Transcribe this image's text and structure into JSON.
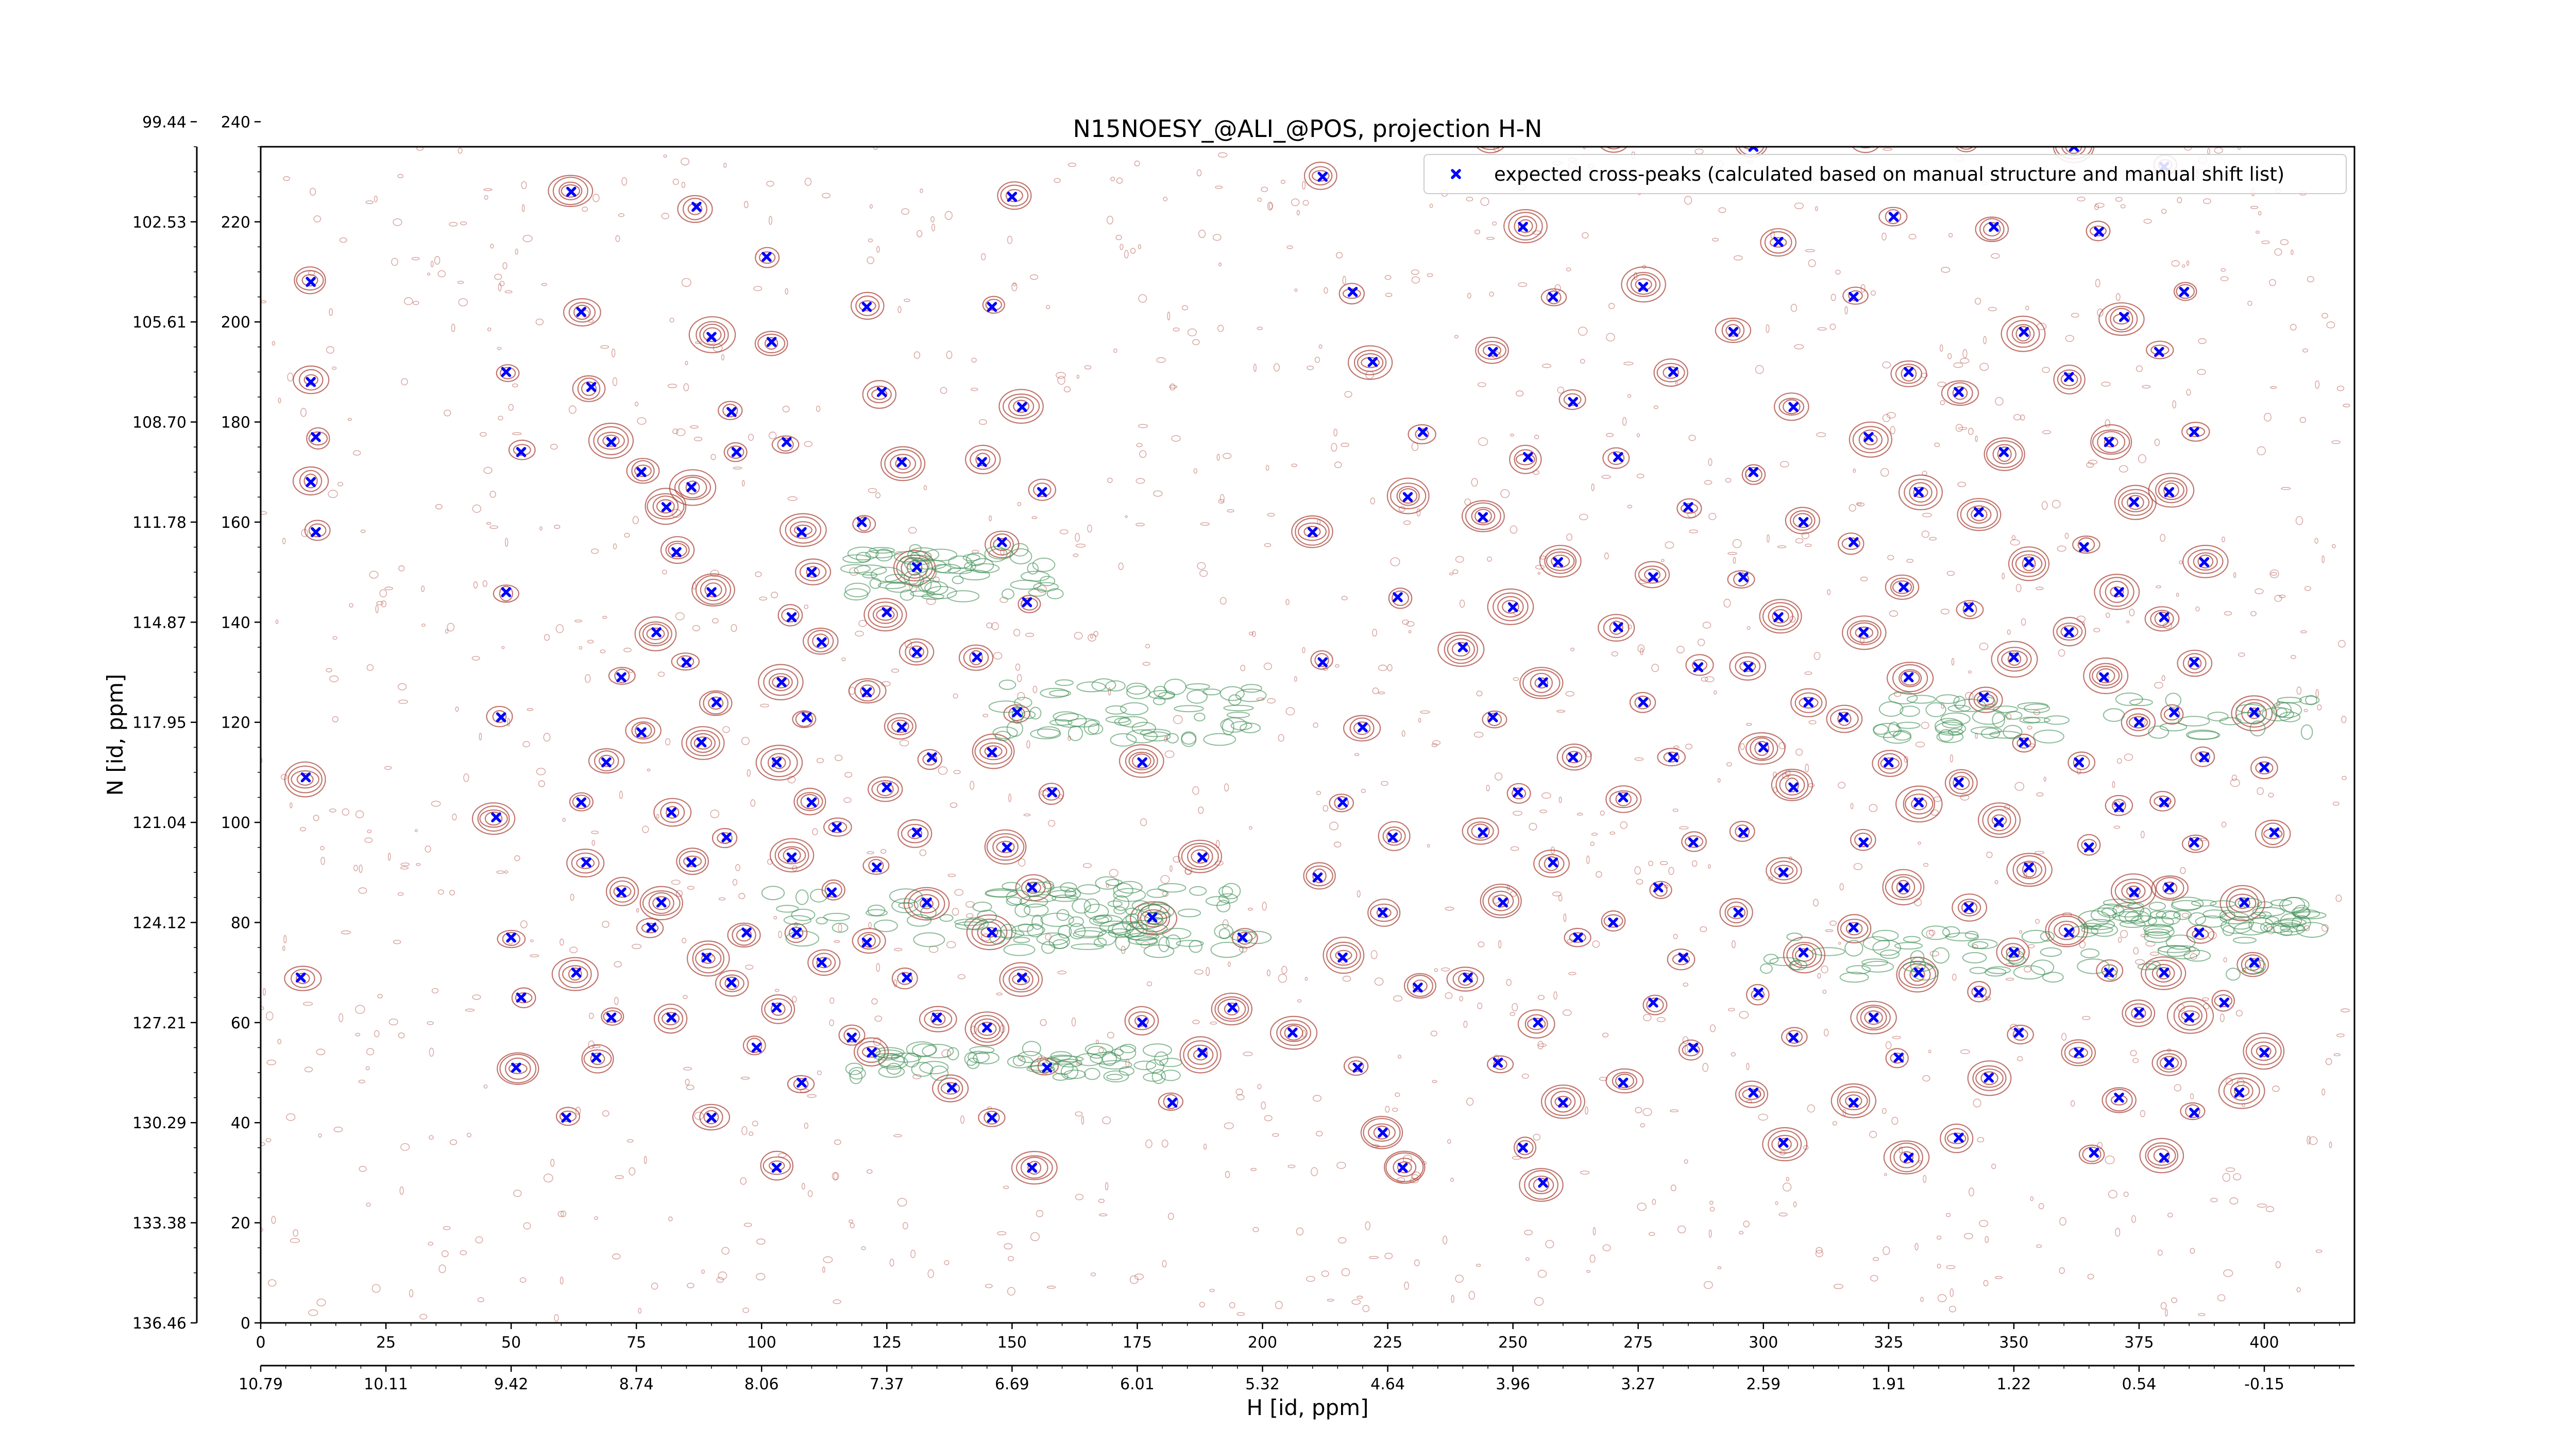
{
  "chart_data": {
    "type": "scatter",
    "title": "N15NOESY_@ALI_@POS, projection H-N",
    "xlabel": "H [id, ppm]",
    "ylabel": "N [id, ppm]",
    "xlim": [
      0,
      418
    ],
    "ylim": [
      0,
      235
    ],
    "x_ticks": [
      0,
      25,
      50,
      75,
      100,
      125,
      150,
      175,
      200,
      225,
      250,
      275,
      300,
      325,
      350,
      375,
      400
    ],
    "y_ticks": [
      0,
      20,
      40,
      60,
      80,
      100,
      120,
      140,
      160,
      180,
      200,
      220,
      240
    ],
    "secondary_x_ticks": [
      {
        "value": 0,
        "label": "10.79"
      },
      {
        "value": 25,
        "label": "10.11"
      },
      {
        "value": 50,
        "label": "9.42"
      },
      {
        "value": 75,
        "label": "8.74"
      },
      {
        "value": 100,
        "label": "8.06"
      },
      {
        "value": 125,
        "label": "7.37"
      },
      {
        "value": 150,
        "label": "6.69"
      },
      {
        "value": 175,
        "label": "6.01"
      },
      {
        "value": 200,
        "label": "5.32"
      },
      {
        "value": 225,
        "label": "4.64"
      },
      {
        "value": 250,
        "label": "3.96"
      },
      {
        "value": 275,
        "label": "3.27"
      },
      {
        "value": 300,
        "label": "2.59"
      },
      {
        "value": 325,
        "label": "1.91"
      },
      {
        "value": 350,
        "label": "1.22"
      },
      {
        "value": 375,
        "label": "0.54"
      },
      {
        "value": 400,
        "label": "-0.15"
      }
    ],
    "secondary_y_ticks": [
      {
        "value": 0,
        "label": "136.46"
      },
      {
        "value": 20,
        "label": "133.38"
      },
      {
        "value": 40,
        "label": "130.29"
      },
      {
        "value": 60,
        "label": "127.21"
      },
      {
        "value": 80,
        "label": "124.12"
      },
      {
        "value": 100,
        "label": "121.04"
      },
      {
        "value": 120,
        "label": "117.95"
      },
      {
        "value": 140,
        "label": "114.87"
      },
      {
        "value": 160,
        "label": "111.78"
      },
      {
        "value": 180,
        "label": "108.70"
      },
      {
        "value": 200,
        "label": "105.61"
      },
      {
        "value": 220,
        "label": "102.53"
      },
      {
        "value": 240,
        "label": "99.44"
      }
    ],
    "legend_position": "top-right",
    "grid": false,
    "series": [
      {
        "name": "expected cross-peaks (calculated based on manual structure and manual shift list)",
        "color": "#0000ff",
        "marker": "x",
        "points": [
          [
            10,
            208
          ],
          [
            10,
            188
          ],
          [
            11,
            177
          ],
          [
            10,
            168
          ],
          [
            11,
            158
          ],
          [
            9,
            109
          ],
          [
            8,
            69
          ],
          [
            49,
            190
          ],
          [
            52,
            174
          ],
          [
            49,
            146
          ],
          [
            48,
            121
          ],
          [
            47,
            101
          ],
          [
            50,
            77
          ],
          [
            52,
            65
          ],
          [
            51,
            51
          ],
          [
            62,
            226
          ],
          [
            64,
            202
          ],
          [
            66,
            187
          ],
          [
            70,
            176
          ],
          [
            76,
            170
          ],
          [
            81,
            163
          ],
          [
            83,
            154
          ],
          [
            79,
            138
          ],
          [
            72,
            129
          ],
          [
            76,
            118
          ],
          [
            69,
            112
          ],
          [
            64,
            104
          ],
          [
            65,
            92
          ],
          [
            72,
            86
          ],
          [
            78,
            79
          ],
          [
            63,
            70
          ],
          [
            70,
            61
          ],
          [
            67,
            53
          ],
          [
            61,
            41
          ],
          [
            87,
            223
          ],
          [
            90,
            197
          ],
          [
            94,
            182
          ],
          [
            95,
            174
          ],
          [
            86,
            167
          ],
          [
            90,
            146
          ],
          [
            85,
            132
          ],
          [
            91,
            124
          ],
          [
            88,
            116
          ],
          [
            82,
            102
          ],
          [
            93,
            97
          ],
          [
            86,
            92
          ],
          [
            80,
            84
          ],
          [
            97,
            78
          ],
          [
            89,
            73
          ],
          [
            94,
            68
          ],
          [
            82,
            61
          ],
          [
            99,
            55
          ],
          [
            90,
            41
          ],
          [
            101,
            213
          ],
          [
            102,
            196
          ],
          [
            105,
            176
          ],
          [
            108,
            158
          ],
          [
            110,
            150
          ],
          [
            106,
            141
          ],
          [
            112,
            136
          ],
          [
            104,
            128
          ],
          [
            109,
            121
          ],
          [
            103,
            112
          ],
          [
            110,
            104
          ],
          [
            115,
            99
          ],
          [
            106,
            93
          ],
          [
            114,
            86
          ],
          [
            107,
            78
          ],
          [
            112,
            72
          ],
          [
            103,
            63
          ],
          [
            118,
            57
          ],
          [
            108,
            48
          ],
          [
            103,
            31
          ],
          [
            121,
            203
          ],
          [
            124,
            186
          ],
          [
            128,
            172
          ],
          [
            120,
            160
          ],
          [
            131,
            151
          ],
          [
            125,
            142
          ],
          [
            131,
            134
          ],
          [
            121,
            126
          ],
          [
            128,
            119
          ],
          [
            134,
            113
          ],
          [
            125,
            107
          ],
          [
            131,
            98
          ],
          [
            123,
            91
          ],
          [
            133,
            84
          ],
          [
            121,
            76
          ],
          [
            129,
            69
          ],
          [
            135,
            61
          ],
          [
            122,
            54
          ],
          [
            138,
            47
          ],
          [
            150,
            225
          ],
          [
            146,
            203
          ],
          [
            152,
            183
          ],
          [
            144,
            172
          ],
          [
            156,
            166
          ],
          [
            148,
            156
          ],
          [
            153,
            144
          ],
          [
            143,
            133
          ],
          [
            151,
            122
          ],
          [
            146,
            114
          ],
          [
            158,
            106
          ],
          [
            149,
            95
          ],
          [
            154,
            87
          ],
          [
            146,
            78
          ],
          [
            152,
            69
          ],
          [
            145,
            59
          ],
          [
            157,
            51
          ],
          [
            146,
            41
          ],
          [
            154,
            31
          ],
          [
            176,
            112
          ],
          [
            178,
            81
          ],
          [
            176,
            60
          ],
          [
            182,
            44
          ],
          [
            188,
            93
          ],
          [
            196,
            77
          ],
          [
            194,
            63
          ],
          [
            188,
            54
          ],
          [
            212,
            229
          ],
          [
            218,
            206
          ],
          [
            222,
            192
          ],
          [
            232,
            178
          ],
          [
            229,
            165
          ],
          [
            210,
            158
          ],
          [
            227,
            145
          ],
          [
            212,
            132
          ],
          [
            220,
            119
          ],
          [
            216,
            104
          ],
          [
            226,
            97
          ],
          [
            211,
            89
          ],
          [
            224,
            82
          ],
          [
            216,
            73
          ],
          [
            231,
            67
          ],
          [
            206,
            58
          ],
          [
            219,
            51
          ],
          [
            224,
            38
          ],
          [
            228,
            31
          ],
          [
            245,
            236
          ],
          [
            252,
            219
          ],
          [
            258,
            205
          ],
          [
            246,
            194
          ],
          [
            262,
            184
          ],
          [
            253,
            173
          ],
          [
            244,
            161
          ],
          [
            259,
            152
          ],
          [
            250,
            143
          ],
          [
            240,
            135
          ],
          [
            256,
            128
          ],
          [
            246,
            121
          ],
          [
            262,
            113
          ],
          [
            251,
            106
          ],
          [
            244,
            98
          ],
          [
            258,
            92
          ],
          [
            248,
            84
          ],
          [
            263,
            77
          ],
          [
            241,
            69
          ],
          [
            255,
            60
          ],
          [
            247,
            52
          ],
          [
            260,
            44
          ],
          [
            252,
            35
          ],
          [
            256,
            28
          ],
          [
            270,
            236
          ],
          [
            276,
            207
          ],
          [
            282,
            190
          ],
          [
            271,
            173
          ],
          [
            285,
            163
          ],
          [
            278,
            149
          ],
          [
            271,
            139
          ],
          [
            287,
            131
          ],
          [
            276,
            124
          ],
          [
            282,
            113
          ],
          [
            272,
            105
          ],
          [
            286,
            96
          ],
          [
            279,
            87
          ],
          [
            270,
            80
          ],
          [
            284,
            73
          ],
          [
            278,
            64
          ],
          [
            286,
            55
          ],
          [
            272,
            48
          ],
          [
            298,
            235
          ],
          [
            303,
            216
          ],
          [
            294,
            198
          ],
          [
            306,
            183
          ],
          [
            298,
            170
          ],
          [
            308,
            160
          ],
          [
            296,
            149
          ],
          [
            303,
            141
          ],
          [
            297,
            131
          ],
          [
            309,
            124
          ],
          [
            300,
            115
          ],
          [
            306,
            107
          ],
          [
            296,
            98
          ],
          [
            304,
            90
          ],
          [
            295,
            82
          ],
          [
            308,
            74
          ],
          [
            299,
            66
          ],
          [
            306,
            57
          ],
          [
            298,
            46
          ],
          [
            304,
            36
          ],
          [
            320,
            236
          ],
          [
            326,
            221
          ],
          [
            318,
            205
          ],
          [
            329,
            190
          ],
          [
            321,
            177
          ],
          [
            331,
            166
          ],
          [
            318,
            156
          ],
          [
            328,
            147
          ],
          [
            320,
            138
          ],
          [
            329,
            129
          ],
          [
            316,
            121
          ],
          [
            325,
            112
          ],
          [
            331,
            104
          ],
          [
            320,
            96
          ],
          [
            328,
            87
          ],
          [
            318,
            79
          ],
          [
            331,
            70
          ],
          [
            322,
            61
          ],
          [
            327,
            53
          ],
          [
            318,
            44
          ],
          [
            329,
            33
          ],
          [
            341,
            236
          ],
          [
            346,
            219
          ],
          [
            352,
            198
          ],
          [
            339,
            186
          ],
          [
            348,
            174
          ],
          [
            343,
            162
          ],
          [
            353,
            152
          ],
          [
            341,
            143
          ],
          [
            350,
            133
          ],
          [
            344,
            125
          ],
          [
            352,
            116
          ],
          [
            339,
            108
          ],
          [
            347,
            100
          ],
          [
            353,
            91
          ],
          [
            341,
            83
          ],
          [
            350,
            74
          ],
          [
            343,
            66
          ],
          [
            351,
            58
          ],
          [
            345,
            49
          ],
          [
            339,
            37
          ],
          [
            362,
            235
          ],
          [
            367,
            218
          ],
          [
            372,
            201
          ],
          [
            361,
            189
          ],
          [
            369,
            176
          ],
          [
            374,
            164
          ],
          [
            364,
            155
          ],
          [
            371,
            146
          ],
          [
            361,
            138
          ],
          [
            368,
            129
          ],
          [
            375,
            120
          ],
          [
            363,
            112
          ],
          [
            371,
            103
          ],
          [
            365,
            95
          ],
          [
            374,
            86
          ],
          [
            361,
            78
          ],
          [
            369,
            70
          ],
          [
            375,
            62
          ],
          [
            363,
            54
          ],
          [
            371,
            45
          ],
          [
            366,
            34
          ],
          [
            380,
            231
          ],
          [
            384,
            206
          ],
          [
            379,
            194
          ],
          [
            386,
            178
          ],
          [
            381,
            166
          ],
          [
            388,
            152
          ],
          [
            380,
            141
          ],
          [
            386,
            132
          ],
          [
            382,
            122
          ],
          [
            388,
            113
          ],
          [
            380,
            104
          ],
          [
            386,
            96
          ],
          [
            381,
            87
          ],
          [
            387,
            78
          ],
          [
            380,
            70
          ],
          [
            385,
            61
          ],
          [
            381,
            52
          ],
          [
            386,
            42
          ],
          [
            380,
            33
          ],
          [
            398,
            122
          ],
          [
            400,
            111
          ],
          [
            402,
            98
          ],
          [
            396,
            84
          ],
          [
            398,
            72
          ],
          [
            392,
            64
          ],
          [
            400,
            54
          ],
          [
            395,
            46
          ]
        ]
      }
    ]
  }
}
